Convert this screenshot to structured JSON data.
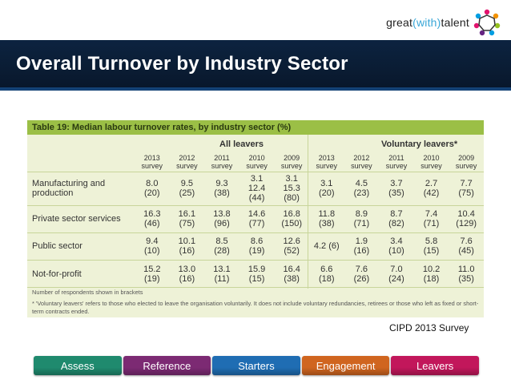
{
  "brand": {
    "name_part1": "great",
    "name_open": "(",
    "name_part2": "with",
    "name_close": ")",
    "name_part3": "talent"
  },
  "header": {
    "title": "Overall Turnover by Industry Sector"
  },
  "table": {
    "caption": "Table 19: Median labour turnover rates, by industry sector (%)",
    "group_all": "All leavers",
    "group_voluntary": "Voluntary leavers*",
    "columns": [
      {
        "year": "2013",
        "label": "survey"
      },
      {
        "year": "2012",
        "label": "survey"
      },
      {
        "year": "2011",
        "label": "survey"
      },
      {
        "year": "2010",
        "label": "survey"
      },
      {
        "year": "2009",
        "label": "survey"
      },
      {
        "year": "2013",
        "label": "survey"
      },
      {
        "year": "2012",
        "label": "survey"
      },
      {
        "year": "2011",
        "label": "survey"
      },
      {
        "year": "2010",
        "label": "survey"
      },
      {
        "year": "2009",
        "label": "survey"
      }
    ],
    "rows": [
      {
        "sector": "Manufacturing and production",
        "cells": [
          [
            "8.0",
            "(20)"
          ],
          [
            "9.5",
            "(25)"
          ],
          [
            "9.3",
            "(38)"
          ],
          [
            "3.1",
            "12.4",
            "(44)"
          ],
          [
            "3.1",
            "15.3",
            "(80)"
          ],
          [
            "3.1",
            "(20)"
          ],
          [
            "4.5",
            "(23)"
          ],
          [
            "3.7",
            "(35)"
          ],
          [
            "2.7",
            "(42)"
          ],
          [
            "7.7",
            "(75)"
          ]
        ]
      },
      {
        "sector": "Private sector services",
        "cells": [
          [
            "16.3",
            "(46)"
          ],
          [
            "16.1",
            "(75)"
          ],
          [
            "13.8",
            "(96)"
          ],
          [
            "14.6",
            "(77)"
          ],
          [
            "16.8",
            "(150)"
          ],
          [
            "11.8",
            "(38)"
          ],
          [
            "8.9",
            "(71)"
          ],
          [
            "8.7",
            "(82)"
          ],
          [
            "7.4",
            "(71)"
          ],
          [
            "10.4",
            "(129)"
          ]
        ]
      },
      {
        "sector": "Public sector",
        "cells": [
          [
            "9.4",
            "(10)"
          ],
          [
            "10.1",
            "(16)"
          ],
          [
            "8.5",
            "(28)"
          ],
          [
            "8.6",
            "(19)"
          ],
          [
            "12.6",
            "(52)"
          ],
          [
            "4.2 (6)"
          ],
          [
            "1.9",
            "(16)"
          ],
          [
            "3.4",
            "(10)"
          ],
          [
            "5.8",
            "(15)"
          ],
          [
            "7.6",
            "(45)"
          ]
        ]
      },
      {
        "sector": "Not-for-profit",
        "cells": [
          [
            "15.2",
            "(19)"
          ],
          [
            "13.0",
            "(16)"
          ],
          [
            "13.1",
            "(11)"
          ],
          [
            "15.9",
            "(15)"
          ],
          [
            "16.4",
            "(38)"
          ],
          [
            "6.6",
            "(18)"
          ],
          [
            "7.6",
            "(26)"
          ],
          [
            "7.0",
            "(24)"
          ],
          [
            "10.2",
            "(18)"
          ],
          [
            "11.0",
            "(35)"
          ]
        ]
      }
    ],
    "note1": "Number of respondents shown in brackets",
    "note2": "* 'Voluntary leavers' refers to those who elected to leave the organisation voluntarily. It does not include voluntary redundancies, retirees or those who left as fixed or short-term contracts ended."
  },
  "source": "CIPD 2013 Survey",
  "nav": [
    {
      "label": "Assess",
      "color": "#1f8a6e"
    },
    {
      "label": "Reference",
      "color": "#7c2a73"
    },
    {
      "label": "Starters",
      "color": "#1f6db3"
    },
    {
      "label": "Engagement",
      "color": "#d0651f"
    },
    {
      "label": "Leavers",
      "color": "#c2175b"
    }
  ]
}
